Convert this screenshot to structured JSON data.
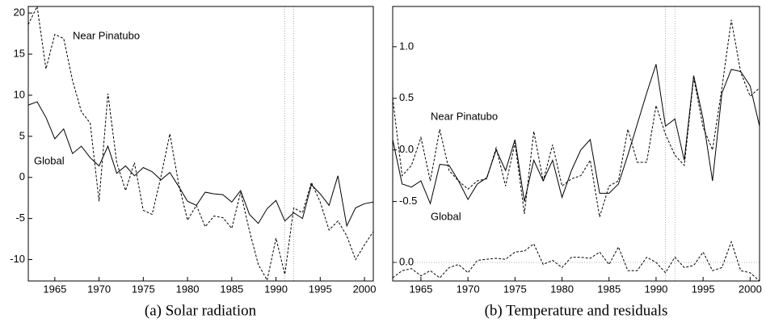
{
  "chart_data": [
    {
      "type": "line",
      "caption": "(a) Solar radiation",
      "x": [
        1962,
        1963,
        1964,
        1965,
        1966,
        1967,
        1968,
        1969,
        1970,
        1971,
        1972,
        1973,
        1974,
        1975,
        1976,
        1977,
        1978,
        1979,
        1980,
        1981,
        1982,
        1983,
        1984,
        1985,
        1986,
        1987,
        1988,
        1989,
        1990,
        1991,
        1992,
        1993,
        1994,
        1995,
        1996,
        1997,
        1998,
        1999,
        2000,
        2001
      ],
      "series": [
        {
          "name": "Global",
          "color": "#000000",
          "line_style": "solid",
          "values": [
            8.8,
            9.2,
            7.3,
            4.7,
            5.9,
            2.9,
            3.8,
            2.4,
            1.4,
            3.8,
            0.5,
            1.4,
            0.2,
            1.2,
            0.7,
            -0.3,
            0.6,
            -1.1,
            -2.9,
            -3.4,
            -1.8,
            -2.0,
            -2.1,
            -3.0,
            -1.6,
            -4.5,
            -5.6,
            -3.8,
            -2.8,
            -5.3,
            -4.3,
            -5.0,
            -0.9,
            -2.0,
            -3.4,
            0.2,
            -5.9,
            -3.7,
            -3.2,
            -3.0
          ]
        },
        {
          "name": "Near Pinatubo",
          "color": "#000000",
          "line_style": "dashed",
          "values": [
            18.6,
            20.8,
            13.2,
            17.4,
            16.9,
            11.8,
            8.0,
            6.6,
            -2.9,
            10.2,
            1.8,
            -1.6,
            1.8,
            -4.0,
            -4.5,
            0.1,
            5.3,
            -0.8,
            -5.2,
            -3.4,
            -6.0,
            -4.7,
            -4.9,
            -6.2,
            -1.8,
            -6.5,
            -10.6,
            -12.5,
            -7.4,
            -11.8,
            -3.7,
            -4.3,
            -0.6,
            -3.0,
            -6.4,
            -5.3,
            -7.1,
            -10.0,
            -8.2,
            -6.6
          ]
        }
      ],
      "xlim": [
        1962,
        2001
      ],
      "xticks": [
        1965,
        1970,
        1975,
        1980,
        1985,
        1990,
        1995,
        2000
      ],
      "ylim": [
        -12.6,
        20.8
      ],
      "yticks": [
        -10,
        -5,
        0,
        5,
        10,
        15,
        20
      ],
      "vlines": [
        1991,
        1992
      ]
    },
    {
      "type": "line",
      "caption": "(b) Temperature and residuals",
      "x": [
        1962,
        1963,
        1964,
        1965,
        1966,
        1967,
        1968,
        1969,
        1970,
        1971,
        1972,
        1973,
        1974,
        1975,
        1976,
        1977,
        1978,
        1979,
        1980,
        1981,
        1982,
        1983,
        1984,
        1985,
        1986,
        1987,
        1988,
        1989,
        1990,
        1991,
        1992,
        1993,
        1994,
        1995,
        1996,
        1997,
        1998,
        1999,
        2000,
        2001
      ],
      "series": [
        {
          "name": "Global",
          "color": "#000000",
          "line_style": "solid",
          "values": [
            0.1,
            -0.33,
            -0.36,
            -0.3,
            -0.52,
            -0.14,
            -0.15,
            -0.3,
            -0.48,
            -0.33,
            -0.27,
            0.0,
            -0.2,
            0.1,
            -0.5,
            -0.1,
            -0.3,
            -0.1,
            -0.46,
            -0.2,
            0.0,
            0.1,
            -0.42,
            -0.42,
            -0.33,
            -0.05,
            0.25,
            0.55,
            0.83,
            0.23,
            0.3,
            -0.1,
            0.72,
            0.3,
            -0.3,
            0.55,
            0.78,
            0.76,
            0.62,
            0.23
          ]
        },
        {
          "name": "Near Pinatubo",
          "color": "#000000",
          "line_style": "dashed",
          "values": [
            0.5,
            -0.25,
            -0.15,
            0.12,
            -0.3,
            0.2,
            -0.2,
            -0.3,
            -0.38,
            -0.3,
            -0.28,
            0.02,
            -0.35,
            0.07,
            -0.62,
            0.18,
            -0.3,
            0.05,
            -0.35,
            -0.28,
            -0.25,
            -0.1,
            -0.65,
            -0.35,
            -0.3,
            0.2,
            -0.12,
            -0.12,
            0.43,
            0.15,
            -0.05,
            -0.15,
            0.7,
            0.22,
            0.0,
            0.6,
            1.26,
            0.75,
            0.52,
            0.6
          ]
        },
        {
          "color": "#000000",
          "line_style": "dashed",
          "axis": "y2",
          "values": [
            -0.15,
            -0.08,
            -0.06,
            -0.13,
            -0.08,
            -0.15,
            -0.05,
            -0.02,
            -0.1,
            0.02,
            0.03,
            0.04,
            0.03,
            0.1,
            0.11,
            0.18,
            -0.02,
            0.02,
            -0.05,
            0.05,
            0.05,
            0.04,
            0.1,
            -0.02,
            0.15,
            -0.08,
            -0.08,
            0.05,
            0.0,
            -0.1,
            0.05,
            -0.05,
            -0.03,
            0.1,
            -0.08,
            -0.05,
            0.2,
            -0.08,
            -0.1,
            -0.18
          ]
        }
      ],
      "xlim": [
        1962,
        2001
      ],
      "xticks": [
        1965,
        1970,
        1975,
        1980,
        1985,
        1990,
        1995,
        2000
      ],
      "ylim": [
        -1.27,
        1.39
      ],
      "yticks": [
        -0.5,
        {
          "value": 0,
          "label": "0.0"
        },
        0.5,
        {
          "value": 1,
          "label": "1.0"
        }
      ],
      "y2lim": [
        -0.18,
        2.48
      ],
      "y2ticks": [
        {
          "value": 0,
          "label": "0.0"
        }
      ],
      "y2grid": true,
      "vlines": [
        1991,
        1992
      ]
    }
  ]
}
